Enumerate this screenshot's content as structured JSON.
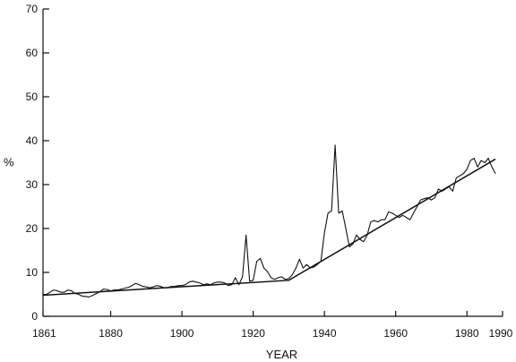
{
  "chart_data": {
    "type": "line",
    "title": "",
    "xlabel": "YEAR",
    "ylabel": "%",
    "xlim": [
      1861,
      1990
    ],
    "ylim": [
      0,
      70
    ],
    "x_ticks": [
      1861,
      1880,
      1900,
      1920,
      1940,
      1960,
      1980,
      1990
    ],
    "y_ticks": [
      0,
      10,
      20,
      30,
      40,
      50,
      60,
      70
    ],
    "grid": false,
    "legend": "none",
    "series": [
      {
        "x": [
          1861,
          1862,
          1863,
          1864,
          1865,
          1866,
          1867,
          1868,
          1869,
          1870,
          1871,
          1872,
          1873,
          1874,
          1875,
          1876,
          1877,
          1878,
          1879,
          1880,
          1881,
          1882,
          1883,
          1884,
          1885,
          1886,
          1887,
          1888,
          1889,
          1890,
          1891,
          1892,
          1893,
          1894,
          1895,
          1896,
          1897,
          1898,
          1899,
          1900,
          1901,
          1902,
          1903,
          1904,
          1905,
          1906,
          1907,
          1908,
          1909,
          1910,
          1911,
          1912,
          1913,
          1914,
          1915,
          1916,
          1917,
          1918,
          1919,
          1920,
          1921,
          1922,
          1923,
          1924,
          1925,
          1926,
          1927,
          1928,
          1929,
          1930,
          1931,
          1932,
          1933,
          1934,
          1935,
          1936,
          1937,
          1938,
          1939,
          1940,
          1941,
          1942,
          1943,
          1944,
          1945,
          1946,
          1947,
          1948,
          1949,
          1950,
          1951,
          1952,
          1953,
          1954,
          1955,
          1956,
          1957,
          1958,
          1959,
          1960,
          1961,
          1962,
          1963,
          1964,
          1965,
          1966,
          1967,
          1968,
          1969,
          1970,
          1971,
          1972,
          1973,
          1974,
          1975,
          1976,
          1977,
          1978,
          1979,
          1980,
          1981,
          1982,
          1983,
          1984,
          1985,
          1986,
          1987,
          1988
        ],
        "values": [
          5,
          5,
          5.5,
          6,
          5.8,
          5.5,
          5.5,
          6,
          5.8,
          5.2,
          5,
          4.6,
          4.5,
          4.4,
          4.8,
          5.2,
          5.6,
          6.2,
          6.1,
          5.8,
          6,
          6,
          6.2,
          6.4,
          6.6,
          7,
          7.5,
          7.2,
          6.8,
          6.7,
          6.5,
          6.7,
          7,
          6.8,
          6.5,
          6.5,
          6.8,
          6.8,
          7,
          7,
          7.2,
          7.8,
          8,
          7.8,
          7.6,
          7.2,
          7.4,
          7.2,
          7.6,
          7.8,
          7.8,
          7.6,
          7,
          7.2,
          8.8,
          7.2,
          9,
          18.5,
          8,
          8.2,
          12.5,
          13.2,
          11,
          10.2,
          8.8,
          8.4,
          8.8,
          9,
          8.4,
          8.6,
          9.5,
          11,
          13,
          11,
          11.8,
          11,
          11.2,
          11.8,
          12.5,
          19,
          23.5,
          24,
          39,
          23.5,
          24,
          20,
          15.8,
          16.5,
          18.5,
          17.5,
          17,
          18.5,
          21.5,
          21.8,
          21.5,
          22,
          22,
          23.8,
          23.5,
          23,
          22.5,
          23,
          22.5,
          22,
          23.5,
          25,
          26.5,
          26.8,
          27,
          26.5,
          27,
          29,
          28.5,
          29,
          29.5,
          28.5,
          31.5,
          32,
          32.5,
          33.5,
          35.5,
          36,
          34,
          35.5,
          35,
          36,
          34,
          32.5
        ]
      },
      {
        "x": [
          1861,
          1930,
          1988
        ],
        "values": [
          4.8,
          8.2,
          35.8
        ]
      }
    ]
  }
}
